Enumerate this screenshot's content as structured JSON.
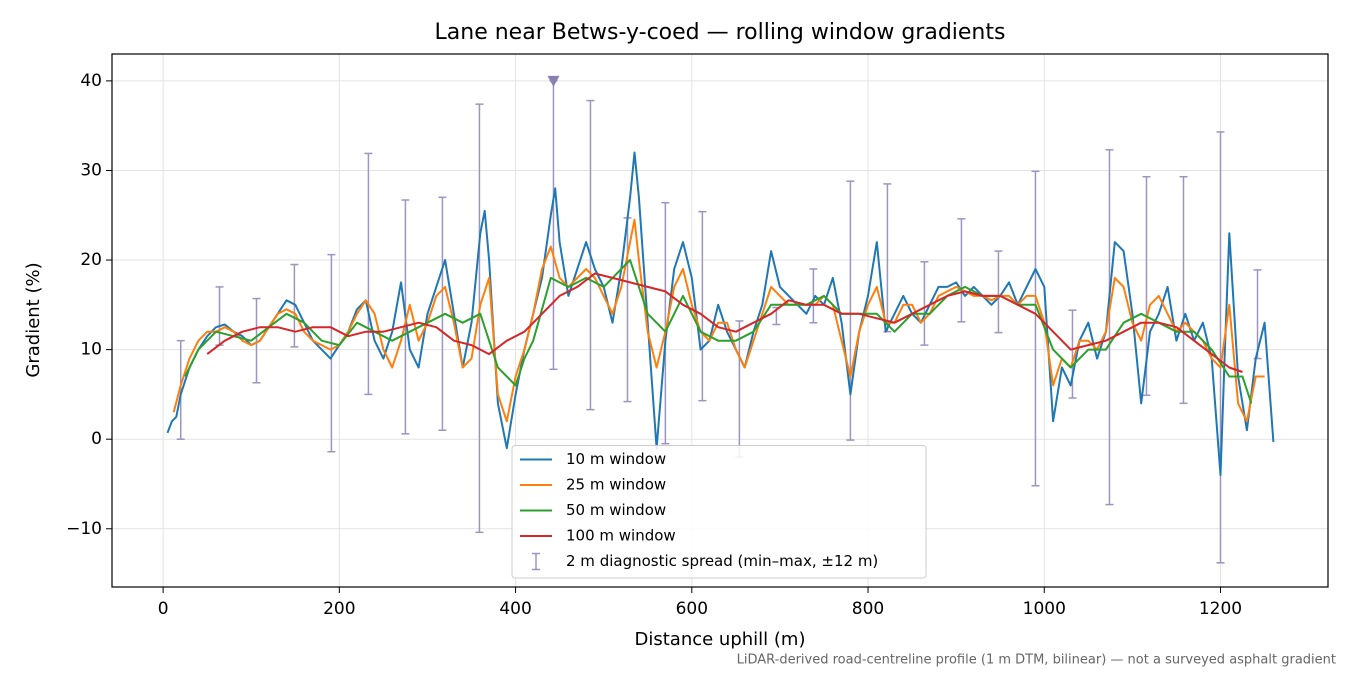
{
  "chart_data": {
    "type": "line",
    "title": "Lane near Betws-y-coed — rolling window gradients",
    "x_label": "Distance uphill (m)",
    "y_label": "Gradient (%)",
    "footnote": "LiDAR-derived road-centreline profile (1 m DTM, bilinear) — not a surveyed asphalt gradient",
    "xlim": [
      -58,
      1322
    ],
    "ylim": [
      -16.5,
      43
    ],
    "xticks": [
      0,
      200,
      400,
      600,
      800,
      1000,
      1200
    ],
    "yticks": [
      {
        "value": -10,
        "label": "−10"
      },
      0,
      10,
      20,
      30,
      40
    ],
    "grid": true,
    "legend": "lower center",
    "series": [
      {
        "name": "10 m window",
        "color": "#1f77b4",
        "x": [
          5,
          10,
          15,
          20,
          30,
          40,
          50,
          60,
          70,
          80,
          90,
          100,
          110,
          120,
          130,
          140,
          150,
          160,
          170,
          180,
          190,
          200,
          210,
          220,
          230,
          240,
          250,
          260,
          270,
          280,
          290,
          300,
          310,
          320,
          330,
          340,
          350,
          360,
          365,
          370,
          380,
          390,
          400,
          410,
          420,
          430,
          440,
          445,
          450,
          460,
          470,
          480,
          490,
          500,
          510,
          520,
          530,
          535,
          540,
          550,
          560,
          570,
          580,
          590,
          600,
          610,
          620,
          630,
          640,
          650,
          660,
          670,
          680,
          690,
          700,
          710,
          720,
          730,
          740,
          750,
          760,
          770,
          780,
          790,
          800,
          810,
          820,
          830,
          840,
          850,
          860,
          870,
          880,
          890,
          900,
          910,
          920,
          930,
          940,
          950,
          960,
          970,
          980,
          990,
          1000,
          1010,
          1020,
          1030,
          1040,
          1050,
          1060,
          1070,
          1080,
          1090,
          1100,
          1110,
          1120,
          1130,
          1140,
          1150,
          1160,
          1170,
          1180,
          1190,
          1200,
          1205,
          1210,
          1220,
          1230,
          1240,
          1250,
          1260
        ],
        "values": [
          0.7,
          2,
          2.5,
          5,
          8,
          10,
          11.5,
          12.5,
          12.8,
          12,
          11.5,
          10.5,
          11,
          12.5,
          14,
          15.5,
          15,
          13,
          11,
          10,
          9,
          10.5,
          12,
          14.5,
          15.5,
          11,
          9,
          12,
          17.5,
          10,
          8,
          14,
          17,
          20,
          14,
          8,
          13,
          23,
          25.5,
          20,
          4,
          -1,
          5,
          10,
          14,
          18,
          25,
          28,
          22,
          16,
          19,
          22,
          19,
          17,
          13,
          19,
          27,
          32,
          27,
          13,
          -1,
          11,
          19,
          22,
          18,
          10,
          11,
          15,
          12,
          10,
          8,
          12,
          15,
          21,
          17,
          16,
          15,
          14,
          16,
          15,
          18,
          13,
          5,
          12,
          16,
          22,
          12,
          14,
          16,
          14,
          13,
          15,
          17,
          17,
          17.5,
          16,
          17,
          16,
          15,
          16,
          17.5,
          15,
          17,
          19,
          17,
          2,
          8,
          6,
          11,
          13,
          9,
          12,
          22,
          21,
          14,
          4,
          12,
          14,
          17,
          11,
          14,
          11,
          13,
          9,
          -4,
          10,
          23,
          7,
          1,
          9,
          13,
          -0.3
        ]
      },
      {
        "name": "25 m window",
        "color": "#ff7f0e",
        "x": [
          12,
          20,
          30,
          40,
          50,
          60,
          70,
          80,
          90,
          100,
          110,
          120,
          130,
          140,
          150,
          160,
          170,
          180,
          190,
          200,
          210,
          220,
          230,
          240,
          250,
          260,
          270,
          280,
          290,
          300,
          310,
          320,
          330,
          340,
          350,
          360,
          370,
          380,
          390,
          400,
          410,
          420,
          430,
          440,
          450,
          460,
          470,
          480,
          490,
          500,
          510,
          520,
          530,
          535,
          540,
          550,
          560,
          570,
          580,
          590,
          600,
          610,
          620,
          630,
          640,
          650,
          660,
          670,
          680,
          690,
          700,
          710,
          720,
          730,
          740,
          750,
          760,
          770,
          780,
          790,
          800,
          810,
          820,
          830,
          840,
          850,
          860,
          870,
          880,
          890,
          900,
          910,
          920,
          930,
          940,
          950,
          960,
          970,
          980,
          990,
          1000,
          1010,
          1020,
          1030,
          1040,
          1050,
          1060,
          1070,
          1080,
          1090,
          1100,
          1110,
          1120,
          1130,
          1140,
          1150,
          1160,
          1170,
          1180,
          1190,
          1200,
          1210,
          1220,
          1230,
          1240,
          1250
        ],
        "values": [
          3,
          6,
          9,
          11,
          12,
          12,
          12.5,
          12,
          11,
          10.5,
          11,
          12.5,
          14,
          14.5,
          14,
          12,
          11,
          10.5,
          10,
          10.5,
          12,
          14,
          15.5,
          14,
          10,
          8,
          11,
          15,
          11,
          13,
          16,
          17,
          13,
          8,
          9,
          15,
          18,
          5,
          2,
          7,
          10,
          14,
          19,
          21.5,
          18,
          17,
          18,
          19,
          18,
          16,
          14,
          17,
          22,
          24.5,
          20,
          12,
          8,
          12,
          17,
          19,
          15,
          12,
          11,
          13,
          13,
          10,
          8,
          11,
          14,
          17,
          16,
          15,
          15,
          15,
          15,
          16,
          15,
          11,
          7,
          12,
          15,
          17,
          13,
          13,
          15,
          15,
          13,
          14,
          16,
          16.5,
          17,
          16.5,
          16,
          16,
          15.5,
          16,
          16,
          15,
          16,
          16,
          13,
          6,
          9,
          8,
          11,
          11,
          10,
          12,
          18,
          17,
          13,
          11,
          15,
          16,
          14,
          12,
          13,
          12,
          11,
          9,
          8,
          15,
          4,
          2,
          7,
          7
        ]
      },
      {
        "name": "50 m window",
        "color": "#2ca02c",
        "x": [
          25,
          40,
          60,
          80,
          100,
          120,
          140,
          160,
          180,
          200,
          220,
          240,
          260,
          280,
          300,
          320,
          340,
          360,
          380,
          400,
          410,
          420,
          440,
          460,
          480,
          500,
          520,
          530,
          550,
          570,
          590,
          610,
          630,
          650,
          670,
          690,
          710,
          730,
          750,
          770,
          790,
          810,
          830,
          850,
          870,
          890,
          910,
          930,
          950,
          970,
          990,
          1010,
          1030,
          1050,
          1070,
          1090,
          1110,
          1130,
          1150,
          1170,
          1190,
          1210,
          1225,
          1235
        ],
        "values": [
          7,
          10,
          12,
          11.5,
          11,
          12.5,
          14,
          13,
          11,
          10.5,
          13,
          12,
          11,
          12,
          13,
          14,
          13,
          14,
          8,
          6,
          9,
          11,
          18,
          17,
          18,
          17,
          19,
          20,
          14,
          12,
          16,
          12,
          11,
          11,
          12,
          15,
          15,
          15,
          16,
          14,
          14,
          14,
          12,
          14,
          14,
          16,
          17,
          16,
          16,
          15,
          15,
          10,
          8,
          10,
          10,
          13,
          14,
          13,
          12,
          12,
          10,
          7,
          7,
          4
        ]
      },
      {
        "name": "100 m window",
        "color": "#d62728",
        "x": [
          50,
          70,
          90,
          110,
          130,
          150,
          170,
          190,
          210,
          230,
          250,
          270,
          290,
          310,
          330,
          350,
          370,
          390,
          410,
          430,
          450,
          470,
          490,
          510,
          530,
          550,
          570,
          590,
          610,
          630,
          650,
          670,
          690,
          710,
          730,
          750,
          770,
          790,
          810,
          830,
          850,
          870,
          890,
          910,
          930,
          950,
          970,
          990,
          1010,
          1030,
          1050,
          1070,
          1090,
          1110,
          1130,
          1150,
          1170,
          1190,
          1210,
          1225
        ],
        "values": [
          9.5,
          11,
          12,
          12.5,
          12.5,
          12,
          12.5,
          12.5,
          11.5,
          12,
          12,
          12.5,
          13,
          12.5,
          11,
          10.5,
          9.5,
          11,
          12,
          14,
          16,
          17,
          18.5,
          18,
          17.5,
          17,
          16.5,
          15,
          14,
          12.5,
          12,
          13,
          14,
          15.5,
          15,
          15,
          14,
          14,
          13.5,
          13,
          14,
          15,
          16,
          16.5,
          16,
          16,
          15,
          14,
          12,
          10,
          10.5,
          11,
          12,
          13,
          13,
          12.5,
          11,
          9.5,
          8,
          7.5
        ]
      }
    ],
    "error_bars": {
      "name": "2 m diagnostic spread (min–max, ±12 m)",
      "color": "#9b95bf",
      "x": [
        20,
        64,
        106,
        149,
        191,
        233,
        275,
        317,
        359,
        443,
        485,
        527,
        570,
        612,
        654,
        696,
        738,
        780,
        822,
        864,
        906,
        948,
        990,
        1032,
        1074,
        1116,
        1158,
        1200,
        1242
      ],
      "low": [
        0,
        10.5,
        6.3,
        10.3,
        -1.4,
        5,
        0.6,
        1,
        -10.4,
        7.8,
        3.3,
        4.2,
        -0.5,
        4.3,
        -2,
        12.8,
        13,
        -0.1,
        12,
        10.5,
        13.1,
        11.9,
        -5.2,
        4.6,
        -7.3,
        4.9,
        4,
        -13.8,
        9
      ],
      "high": [
        11,
        17,
        15.7,
        19.5,
        20.6,
        31.9,
        26.7,
        27,
        37.4,
        40,
        37.8,
        24.7,
        26.4,
        25.4,
        13.2,
        14.7,
        19,
        28.8,
        28.5,
        19.8,
        24.6,
        21,
        29.9,
        14.4,
        32.3,
        29.3,
        29.3,
        34.3,
        18.9
      ]
    }
  }
}
